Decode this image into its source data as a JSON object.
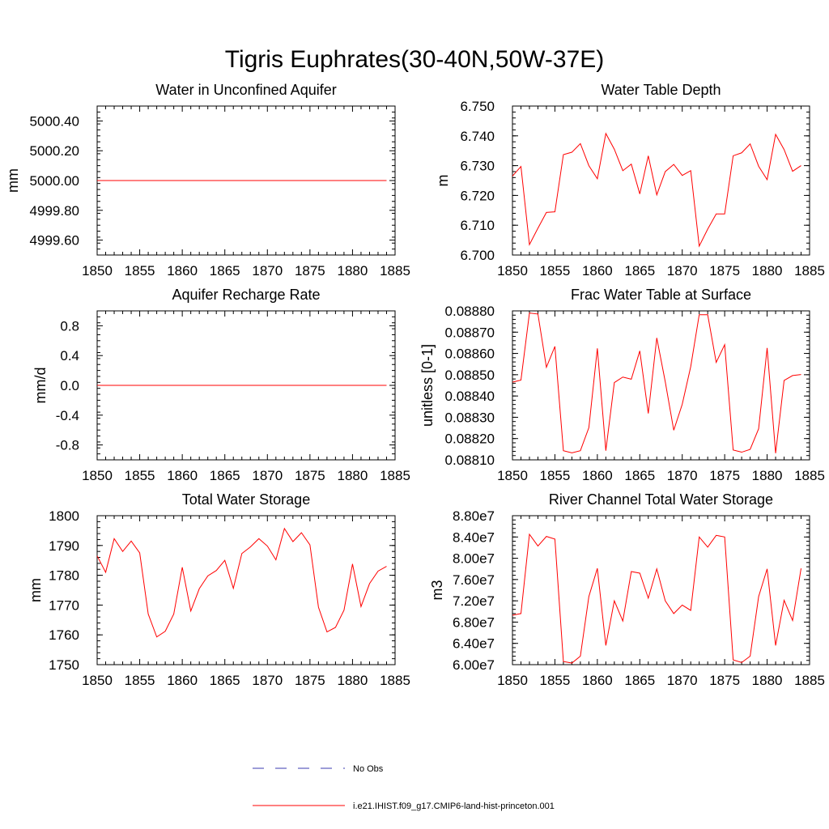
{
  "figure": {
    "title": "Tigris Euphrates(30-40N,50W-37E)",
    "legend": [
      {
        "label": "No Obs",
        "color": "#3b3bb0",
        "style": "dashed"
      },
      {
        "label": "i.e21.IHIST.f09_g17.CMIP6-land-hist-princeton.001",
        "color": "#ff0000",
        "style": "solid"
      }
    ]
  },
  "chart_data": [
    {
      "type": "line",
      "title": "Water in Unconfined Aquifer",
      "xlabel": "",
      "ylabel": "mm",
      "xlim": [
        1850,
        1885
      ],
      "ylim": [
        4999.5,
        5000.5
      ],
      "xticks": [
        1850,
        1855,
        1860,
        1865,
        1870,
        1875,
        1880,
        1885
      ],
      "xtick_labels": [
        "1850",
        "1855",
        "1860",
        "1865",
        "1870",
        "1875",
        "1880",
        "1885"
      ],
      "yticks": [
        4999.6,
        4999.8,
        5000.0,
        5000.2,
        5000.4
      ],
      "ytick_labels": [
        "4999.60",
        "4999.80",
        "5000.00",
        "5000.20",
        "5000.40"
      ],
      "x_start": 1850,
      "series": [
        {
          "color": "#ff0000",
          "values": [
            5000,
            5000,
            5000,
            5000,
            5000,
            5000,
            5000,
            5000,
            5000,
            5000,
            5000,
            5000,
            5000,
            5000,
            5000,
            5000,
            5000,
            5000,
            5000,
            5000,
            5000,
            5000,
            5000,
            5000,
            5000,
            5000,
            5000,
            5000,
            5000,
            5000,
            5000,
            5000,
            5000,
            5000,
            5000
          ]
        }
      ]
    },
    {
      "type": "line",
      "title": "Water Table Depth",
      "xlabel": "",
      "ylabel": "m",
      "xlim": [
        1850,
        1885
      ],
      "ylim": [
        6.7,
        6.75
      ],
      "xticks": [
        1850,
        1855,
        1860,
        1865,
        1870,
        1875,
        1880,
        1885
      ],
      "xtick_labels": [
        "1850",
        "1855",
        "1860",
        "1865",
        "1870",
        "1875",
        "1880",
        "1885"
      ],
      "yticks": [
        6.7,
        6.71,
        6.72,
        6.73,
        6.74,
        6.75
      ],
      "ytick_labels": [
        "6.700",
        "6.710",
        "6.720",
        "6.730",
        "6.740",
        "6.750"
      ],
      "x_start": 1850,
      "series": [
        {
          "color": "#ff0000",
          "values": [
            6.7265,
            6.7297,
            6.7035,
            6.709,
            6.7143,
            6.7145,
            6.7337,
            6.7345,
            6.7374,
            6.73,
            6.7256,
            6.7408,
            6.7355,
            6.7283,
            6.7305,
            6.7205,
            6.7333,
            6.7202,
            6.728,
            6.7304,
            6.7267,
            6.7283,
            6.703,
            6.7087,
            6.7138,
            6.7138,
            6.7333,
            6.7343,
            6.7373,
            6.7298,
            6.7253,
            6.7405,
            6.7354,
            6.7281,
            6.73
          ]
        }
      ]
    },
    {
      "type": "line",
      "title": "Aquifer Recharge Rate",
      "xlabel": "",
      "ylabel": "mm/d",
      "xlim": [
        1850,
        1885
      ],
      "ylim": [
        -1.0,
        1.0
      ],
      "xticks": [
        1850,
        1855,
        1860,
        1865,
        1870,
        1875,
        1880,
        1885
      ],
      "xtick_labels": [
        "1850",
        "1855",
        "1860",
        "1865",
        "1870",
        "1875",
        "1880",
        "1885"
      ],
      "yticks": [
        -0.8,
        -0.4,
        0.0,
        0.4,
        0.8
      ],
      "ytick_labels": [
        "-0.8",
        "-0.4",
        "0.0",
        "0.4",
        "0.8"
      ],
      "x_start": 1850,
      "series": [
        {
          "color": "#ff0000",
          "values": [
            0,
            0,
            0,
            0,
            0,
            0,
            0,
            0,
            0,
            0,
            0,
            0,
            0,
            0,
            0,
            0,
            0,
            0,
            0,
            0,
            0,
            0,
            0,
            0,
            0,
            0,
            0,
            0,
            0,
            0,
            0,
            0,
            0,
            0,
            0
          ]
        }
      ]
    },
    {
      "type": "line",
      "title": "Frac Water Table at Surface",
      "xlabel": "",
      "ylabel": "unitless [0-1]",
      "xlim": [
        1850,
        1885
      ],
      "ylim": [
        0.0881,
        0.0888
      ],
      "xticks": [
        1850,
        1855,
        1860,
        1865,
        1870,
        1875,
        1880,
        1885
      ],
      "xtick_labels": [
        "1850",
        "1855",
        "1860",
        "1865",
        "1870",
        "1875",
        "1880",
        "1885"
      ],
      "yticks": [
        0.0881,
        0.0882,
        0.0883,
        0.0884,
        0.0885,
        0.0886,
        0.0887,
        0.0888
      ],
      "ytick_labels": [
        "0.08810",
        "0.08820",
        "0.08830",
        "0.08840",
        "0.08850",
        "0.08860",
        "0.08870",
        "0.08880"
      ],
      "x_start": 1850,
      "series": [
        {
          "color": "#ff0000",
          "values": [
            0.088465,
            0.088475,
            0.08879,
            0.088785,
            0.088535,
            0.088633,
            0.088143,
            0.088133,
            0.088143,
            0.088251,
            0.088624,
            0.088143,
            0.088463,
            0.088489,
            0.088479,
            0.088612,
            0.088318,
            0.088673,
            0.088467,
            0.088239,
            0.088361,
            0.088538,
            0.088782,
            0.088782,
            0.088558,
            0.088641,
            0.088146,
            0.088136,
            0.088149,
            0.088246,
            0.088626,
            0.088131,
            0.088473,
            0.088496,
            0.088501
          ]
        }
      ]
    },
    {
      "type": "line",
      "title": "Total Water Storage",
      "xlabel": "",
      "ylabel": "mm",
      "xlim": [
        1850,
        1885
      ],
      "ylim": [
        1750,
        1800
      ],
      "xticks": [
        1850,
        1855,
        1860,
        1865,
        1870,
        1875,
        1880,
        1885
      ],
      "xtick_labels": [
        "1850",
        "1855",
        "1860",
        "1865",
        "1870",
        "1875",
        "1880",
        "1885"
      ],
      "yticks": [
        1750,
        1760,
        1770,
        1780,
        1790,
        1800
      ],
      "ytick_labels": [
        "1750",
        "1760",
        "1770",
        "1780",
        "1790",
        "1800"
      ],
      "x_start": 1850,
      "series": [
        {
          "color": "#ff0000",
          "values": [
            1786.5,
            1781,
            1792.3,
            1788,
            1791.5,
            1787.5,
            1767,
            1759.3,
            1761.2,
            1767,
            1782.7,
            1768,
            1775.5,
            1779.8,
            1781.6,
            1785,
            1775.6,
            1787.3,
            1789.5,
            1792.3,
            1789.8,
            1785.2,
            1795.7,
            1791.3,
            1794.3,
            1790.2,
            1769.3,
            1761,
            1762.5,
            1768.3,
            1783.8,
            1769.5,
            1777.2,
            1781.4,
            1783
          ]
        }
      ]
    },
    {
      "type": "line",
      "title": "River Channel Total Water Storage",
      "xlabel": "",
      "ylabel": "m3",
      "xlim": [
        1850,
        1885
      ],
      "ylim": [
        60000000,
        88000000
      ],
      "xticks": [
        1850,
        1855,
        1860,
        1865,
        1870,
        1875,
        1880,
        1885
      ],
      "xtick_labels": [
        "1850",
        "1855",
        "1860",
        "1865",
        "1870",
        "1875",
        "1880",
        "1885"
      ],
      "yticks": [
        60000000,
        64000000,
        68000000,
        72000000,
        76000000,
        80000000,
        84000000,
        88000000
      ],
      "ytick_labels": [
        "6.00e7",
        "6.40e7",
        "6.80e7",
        "7.20e7",
        "7.60e7",
        "8.00e7",
        "8.40e7",
        "8.80e7"
      ],
      "x_start": 1850,
      "series": [
        {
          "color": "#ff0000",
          "values": [
            69300000,
            69600000,
            84500000,
            82300000,
            84100000,
            83600000,
            60600000,
            60300000,
            61600000,
            72800000,
            78100000,
            63600000,
            72000000,
            68200000,
            77500000,
            77200000,
            72500000,
            78000000,
            72000000,
            69600000,
            71200000,
            70200000,
            84000000,
            82100000,
            84300000,
            84000000,
            60900000,
            60400000,
            61600000,
            72800000,
            78000000,
            63600000,
            72100000,
            68300000,
            78100000
          ]
        }
      ]
    }
  ]
}
